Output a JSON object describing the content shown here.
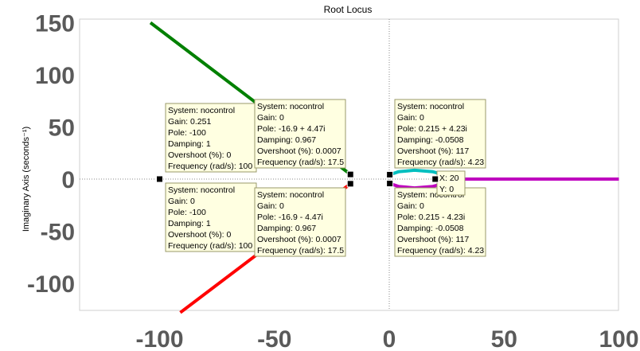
{
  "chart_data": {
    "type": "line",
    "title": "Root Locus",
    "ylabel": "Imaginary Axis (seconds⁻¹)",
    "xlim": [
      -140,
      102
    ],
    "ylim": [
      -128,
      153
    ],
    "x_ticks": [
      -100,
      -50,
      0,
      50,
      100
    ],
    "y_ticks": [
      -100,
      -50,
      0,
      50,
      100,
      150
    ],
    "x_tick_labels": [
      "-100",
      "-50",
      "0",
      "50",
      "100"
    ],
    "y_tick_labels": [
      "-100",
      "-50",
      "0",
      "50",
      "100",
      "150"
    ],
    "grid": false,
    "series": [
      {
        "color": "#008000",
        "x": [
          -16.9,
          -19,
          -104
        ],
        "y": [
          4.47,
          8,
          150
        ]
      },
      {
        "color": "#ff0000",
        "x": [
          -16.9,
          -19,
          -91
        ],
        "y": [
          -4.47,
          -8,
          -128
        ]
      },
      {
        "color": "#00bfbf",
        "x": [
          0.215,
          4,
          11,
          19,
          25,
          28
        ],
        "y": [
          4.23,
          7,
          8.5,
          7,
          3.5,
          0
        ]
      },
      {
        "color": "#bf00bf",
        "x": [
          0.215,
          4,
          11,
          19,
          25,
          28,
          60,
          100
        ],
        "y": [
          -4.23,
          -7,
          -8.5,
          -7,
          -3.5,
          0,
          0,
          0
        ]
      },
      {
        "color": "#000000",
        "x": [
          -100,
          -100
        ],
        "y": [
          0,
          0
        ]
      }
    ],
    "markers": [
      {
        "x": -100,
        "y": 0
      },
      {
        "x": -16.9,
        "y": 4.47
      },
      {
        "x": -16.9,
        "y": -4.47
      },
      {
        "x": 0.215,
        "y": 4.23
      },
      {
        "x": 0.215,
        "y": -4.23
      },
      {
        "x": 20,
        "y": 0
      }
    ],
    "datatips": [
      {
        "lines": [
          "System: nocontrol",
          "Gain: 0.251",
          "Pole: -100",
          "Damping: 1",
          "Overshoot (%): 0",
          "Frequency (rad/s): 100"
        ]
      },
      {
        "lines": [
          "System: nocontrol",
          "Gain: 0",
          "Pole: -100",
          "Damping: 1",
          "Overshoot (%): 0",
          "Frequency (rad/s): 100"
        ]
      },
      {
        "lines": [
          "System: nocontrol",
          "Gain: 0",
          "Pole: -16.9 + 4.47i",
          "Damping: 0.967",
          "Overshoot (%): 0.0007",
          "Frequency (rad/s): 17.5"
        ]
      },
      {
        "lines": [
          "System: nocontrol",
          "Gain: 0",
          "Pole: -16.9 - 4.47i",
          "Damping: 0.967",
          "Overshoot (%): 0.0007",
          "Frequency (rad/s): 17.5"
        ]
      },
      {
        "lines": [
          "System: nocontrol",
          "Gain: 0",
          "Pole: 0.215 + 4.23i",
          "Damping: -0.0508",
          "Overshoot (%): 117",
          "Frequency (rad/s): 4.23"
        ]
      },
      {
        "lines": [
          "System: nocontrol",
          "Gain: 0",
          "Pole: 0.215 - 4.23i",
          "Damping: -0.0508",
          "Overshoot (%): 117",
          "Frequency (rad/s): 4.23"
        ]
      },
      {
        "lines": [
          "X: 20",
          "Y: 0"
        ]
      }
    ]
  }
}
